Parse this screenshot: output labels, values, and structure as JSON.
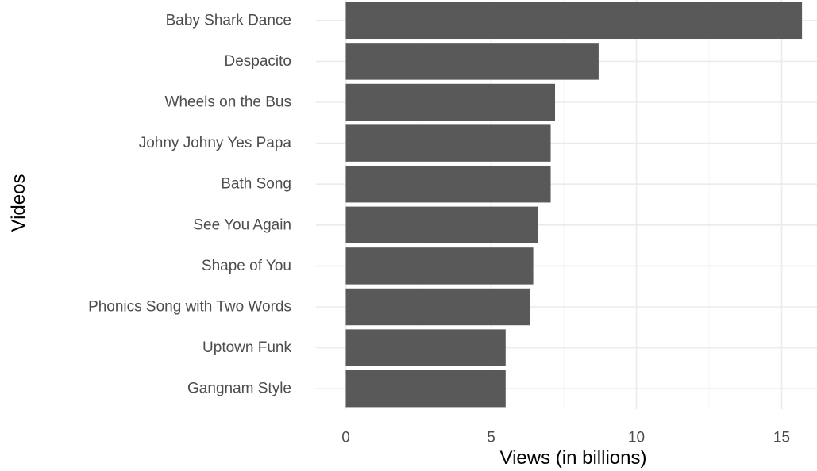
{
  "chart_data": {
    "type": "bar",
    "orientation": "horizontal",
    "categories": [
      "Baby Shark Dance",
      "Despacito",
      "Wheels on the Bus",
      "Johny Johny Yes Papa",
      "Bath Song",
      "See You Again",
      "Shape of You",
      "Phonics Song with Two Words",
      "Uptown Funk",
      "Gangnam Style"
    ],
    "values": [
      15.7,
      8.7,
      7.2,
      7.05,
      7.05,
      6.6,
      6.45,
      6.35,
      5.5,
      5.5
    ],
    "xlabel": "Views (in billions)",
    "ylabel": "Videos",
    "xlim": [
      0,
      16.2
    ],
    "x_ticks": [
      0,
      5,
      10,
      15
    ],
    "x_tick_labels": [
      "0",
      "5",
      "10",
      "15"
    ],
    "bar_color": "#595959",
    "grid_color": "#ebebeb",
    "grid": true,
    "legend": "none"
  }
}
